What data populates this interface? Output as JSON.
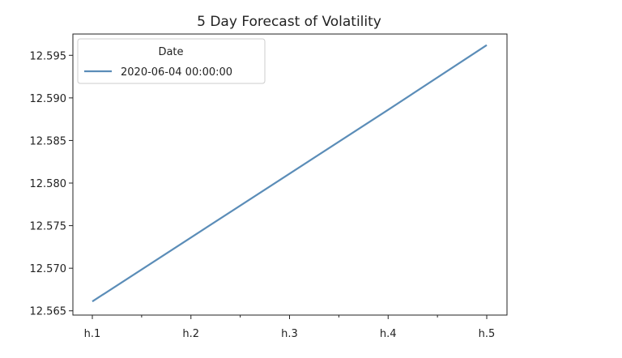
{
  "chart_data": {
    "type": "line",
    "title": "5 Day Forecast of Volatility",
    "xlabel": "",
    "ylabel": "",
    "categories": [
      "h.1",
      "h.2",
      "h.3",
      "h.4",
      "h.5"
    ],
    "series": [
      {
        "name": "2020-06-04 00:00:00",
        "values": [
          12.5661,
          12.5736,
          12.5811,
          12.5886,
          12.5962
        ],
        "color": "#5b8db8"
      }
    ],
    "ylim": [
      12.5645,
      12.5975
    ],
    "yticks": [
      12.565,
      12.57,
      12.575,
      12.58,
      12.585,
      12.59,
      12.595
    ],
    "ytick_labels": [
      "12.565",
      "12.570",
      "12.575",
      "12.580",
      "12.585",
      "12.590",
      "12.595"
    ],
    "grid": false,
    "legend": {
      "title": "Date",
      "placement": "top-left"
    }
  }
}
